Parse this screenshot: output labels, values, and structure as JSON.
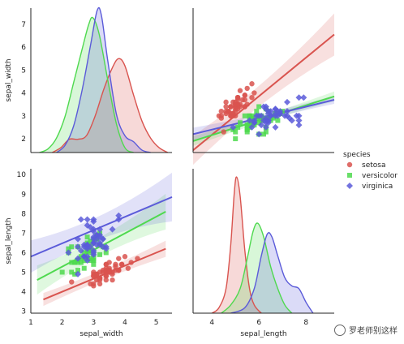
{
  "chart_data": {
    "type": "pairplot",
    "variables": [
      "sepal_width",
      "sepal_length"
    ],
    "species": [
      {
        "name": "setosa",
        "color": "#d9544f",
        "marker": "o"
      },
      {
        "name": "versicolor",
        "color": "#4fd94f",
        "marker": "s"
      },
      {
        "name": "virginica",
        "color": "#5b5bd9",
        "marker": "D"
      }
    ],
    "legend": {
      "title": "species",
      "placement": "right-center"
    },
    "axes": {
      "sepal_width": {
        "range": [
          1.4,
          7.7
        ],
        "ticks": [
          2,
          3,
          4,
          5,
          6,
          7
        ],
        "scatter_range": [
          1,
          5.5
        ],
        "scatter_ticks": [
          1,
          2,
          3,
          4,
          5
        ]
      },
      "sepal_length": {
        "range": [
          2.9,
          10.3
        ],
        "ticks": [
          3,
          4,
          5,
          6,
          7,
          8,
          9,
          10
        ],
        "kde_range": [
          3.2,
          9.2
        ],
        "kde_ticks": [
          4,
          6,
          8
        ]
      }
    },
    "points": {
      "setosa": [
        [
          5.1,
          3.5
        ],
        [
          4.9,
          3.0
        ],
        [
          4.7,
          3.2
        ],
        [
          4.6,
          3.1
        ],
        [
          5.0,
          3.6
        ],
        [
          5.4,
          3.9
        ],
        [
          4.6,
          3.4
        ],
        [
          5.0,
          3.4
        ],
        [
          4.4,
          2.9
        ],
        [
          4.9,
          3.1
        ],
        [
          5.4,
          3.7
        ],
        [
          4.8,
          3.4
        ],
        [
          4.8,
          3.0
        ],
        [
          4.3,
          3.0
        ],
        [
          5.8,
          4.0
        ],
        [
          5.7,
          4.4
        ],
        [
          5.4,
          3.9
        ],
        [
          5.1,
          3.5
        ],
        [
          5.7,
          3.8
        ],
        [
          5.1,
          3.8
        ],
        [
          5.4,
          3.4
        ],
        [
          5.1,
          3.7
        ],
        [
          4.6,
          3.6
        ],
        [
          5.1,
          3.3
        ],
        [
          4.8,
          3.4
        ],
        [
          5.0,
          3.0
        ],
        [
          5.0,
          3.4
        ],
        [
          5.2,
          3.5
        ],
        [
          5.2,
          3.4
        ],
        [
          4.7,
          3.2
        ],
        [
          4.8,
          3.1
        ],
        [
          5.4,
          3.4
        ],
        [
          5.2,
          4.1
        ],
        [
          5.5,
          4.2
        ],
        [
          4.9,
          3.1
        ],
        [
          5.0,
          3.2
        ],
        [
          5.5,
          3.5
        ],
        [
          4.9,
          3.6
        ],
        [
          4.4,
          3.0
        ],
        [
          5.1,
          3.4
        ],
        [
          5.0,
          3.5
        ],
        [
          4.5,
          2.3
        ],
        [
          4.4,
          3.2
        ],
        [
          5.0,
          3.5
        ],
        [
          5.1,
          3.8
        ],
        [
          4.8,
          3.0
        ],
        [
          5.1,
          3.8
        ],
        [
          4.6,
          3.2
        ],
        [
          5.3,
          3.7
        ],
        [
          5.0,
          3.3
        ]
      ],
      "versicolor": [
        [
          7.0,
          3.2
        ],
        [
          6.4,
          3.2
        ],
        [
          6.9,
          3.1
        ],
        [
          5.5,
          2.3
        ],
        [
          6.5,
          2.8
        ],
        [
          5.7,
          2.8
        ],
        [
          6.3,
          3.3
        ],
        [
          4.9,
          2.4
        ],
        [
          6.6,
          2.9
        ],
        [
          5.2,
          2.7
        ],
        [
          5.0,
          2.0
        ],
        [
          5.9,
          3.0
        ],
        [
          6.0,
          2.2
        ],
        [
          6.1,
          2.9
        ],
        [
          5.6,
          2.9
        ],
        [
          6.7,
          3.1
        ],
        [
          5.6,
          3.0
        ],
        [
          5.8,
          2.7
        ],
        [
          6.2,
          2.2
        ],
        [
          5.6,
          2.5
        ],
        [
          5.9,
          3.2
        ],
        [
          6.1,
          2.8
        ],
        [
          6.3,
          2.5
        ],
        [
          6.1,
          2.8
        ],
        [
          6.4,
          2.9
        ],
        [
          6.6,
          3.0
        ],
        [
          6.8,
          2.8
        ],
        [
          6.7,
          3.0
        ],
        [
          6.0,
          2.9
        ],
        [
          5.7,
          2.6
        ],
        [
          5.5,
          2.4
        ],
        [
          5.5,
          2.4
        ],
        [
          5.8,
          2.7
        ],
        [
          6.0,
          2.7
        ],
        [
          5.4,
          3.0
        ],
        [
          6.0,
          3.4
        ],
        [
          6.7,
          3.1
        ],
        [
          6.3,
          2.3
        ],
        [
          5.6,
          3.0
        ],
        [
          5.5,
          2.5
        ],
        [
          5.5,
          2.6
        ],
        [
          6.1,
          3.0
        ],
        [
          5.8,
          2.6
        ],
        [
          5.0,
          2.3
        ],
        [
          5.6,
          2.7
        ],
        [
          5.7,
          3.0
        ],
        [
          5.7,
          2.9
        ],
        [
          6.2,
          2.9
        ],
        [
          5.1,
          2.5
        ],
        [
          5.7,
          2.8
        ]
      ],
      "virginica": [
        [
          6.3,
          3.3
        ],
        [
          5.8,
          2.7
        ],
        [
          7.1,
          3.0
        ],
        [
          6.3,
          2.9
        ],
        [
          6.5,
          3.0
        ],
        [
          7.6,
          3.0
        ],
        [
          4.9,
          2.5
        ],
        [
          7.3,
          2.9
        ],
        [
          6.7,
          2.5
        ],
        [
          7.2,
          3.6
        ],
        [
          6.5,
          3.2
        ],
        [
          6.4,
          2.7
        ],
        [
          6.8,
          3.0
        ],
        [
          5.7,
          2.5
        ],
        [
          5.8,
          2.8
        ],
        [
          6.4,
          3.2
        ],
        [
          6.5,
          3.0
        ],
        [
          7.7,
          3.8
        ],
        [
          7.7,
          2.6
        ],
        [
          6.0,
          2.2
        ],
        [
          6.9,
          3.2
        ],
        [
          5.6,
          2.8
        ],
        [
          7.7,
          2.8
        ],
        [
          6.3,
          2.7
        ],
        [
          6.7,
          3.3
        ],
        [
          7.2,
          3.2
        ],
        [
          6.2,
          2.8
        ],
        [
          6.1,
          3.0
        ],
        [
          6.4,
          2.8
        ],
        [
          7.2,
          3.0
        ],
        [
          7.4,
          2.8
        ],
        [
          7.9,
          3.8
        ],
        [
          6.4,
          2.8
        ],
        [
          6.3,
          2.8
        ],
        [
          6.1,
          2.6
        ],
        [
          7.7,
          3.0
        ],
        [
          6.3,
          3.4
        ],
        [
          6.4,
          3.1
        ],
        [
          6.0,
          3.0
        ],
        [
          6.9,
          3.1
        ],
        [
          6.7,
          3.1
        ],
        [
          6.9,
          3.1
        ],
        [
          5.8,
          2.7
        ],
        [
          6.8,
          3.2
        ],
        [
          6.7,
          3.3
        ],
        [
          6.7,
          3.0
        ],
        [
          6.3,
          2.5
        ],
        [
          6.5,
          3.0
        ],
        [
          6.2,
          3.4
        ],
        [
          5.9,
          3.0
        ]
      ]
    },
    "regression": {
      "top_right": {
        "setosa": [
          [
            3.2,
            1.5
          ],
          [
            9.2,
            6.55
          ]
        ],
        "versicolor": [
          [
            3.2,
            1.9
          ],
          [
            9.2,
            3.85
          ]
        ],
        "virginica": [
          [
            3.2,
            2.2
          ],
          [
            9.2,
            3.7
          ]
        ]
      },
      "bottom_left": {
        "setosa": [
          [
            1.4,
            3.6
          ],
          [
            5.3,
            6.2
          ]
        ],
        "versicolor": [
          [
            1.2,
            4.6
          ],
          [
            5.3,
            8.1
          ]
        ],
        "virginica": [
          [
            1.0,
            5.8
          ],
          [
            5.5,
            8.85
          ]
        ]
      }
    },
    "kde_sepal_width": {
      "setosa": [
        [
          1.9,
          0
        ],
        [
          2.1,
          0.2
        ],
        [
          2.3,
          0.55
        ],
        [
          2.5,
          0.55
        ],
        [
          2.7,
          0.7
        ],
        [
          2.9,
          1.5
        ],
        [
          3.1,
          2.6
        ],
        [
          3.3,
          3.5
        ],
        [
          3.45,
          3.9
        ],
        [
          3.6,
          3.6
        ],
        [
          3.8,
          2.4
        ],
        [
          4.0,
          1.3
        ],
        [
          4.2,
          0.6
        ],
        [
          4.4,
          0.2
        ],
        [
          4.6,
          0
        ]
      ],
      "versicolor": [
        [
          1.6,
          0
        ],
        [
          1.8,
          0.15
        ],
        [
          2.0,
          0.6
        ],
        [
          2.2,
          1.5
        ],
        [
          2.4,
          2.9
        ],
        [
          2.6,
          4.3
        ],
        [
          2.75,
          5.3
        ],
        [
          2.85,
          5.6
        ],
        [
          3.0,
          4.9
        ],
        [
          3.2,
          3.0
        ],
        [
          3.4,
          1.2
        ],
        [
          3.6,
          0.2
        ],
        [
          3.8,
          0
        ]
      ],
      "virginica": [
        [
          2.0,
          0
        ],
        [
          2.2,
          0.3
        ],
        [
          2.4,
          1.1
        ],
        [
          2.6,
          2.6
        ],
        [
          2.8,
          4.5
        ],
        [
          2.95,
          5.9
        ],
        [
          3.05,
          5.7
        ],
        [
          3.2,
          3.8
        ],
        [
          3.4,
          1.6
        ],
        [
          3.6,
          0.7
        ],
        [
          3.8,
          0.45
        ],
        [
          4.0,
          0.1
        ],
        [
          4.2,
          0
        ]
      ]
    },
    "kde_sepal_length": {
      "setosa": [
        [
          4.0,
          0
        ],
        [
          4.3,
          0.2
        ],
        [
          4.6,
          0.9
        ],
        [
          4.8,
          2.5
        ],
        [
          4.95,
          4.4
        ],
        [
          5.05,
          5.0
        ],
        [
          5.2,
          4.3
        ],
        [
          5.4,
          2.3
        ],
        [
          5.6,
          0.9
        ],
        [
          5.8,
          0.3
        ],
        [
          6.1,
          0
        ]
      ],
      "versicolor": [
        [
          4.4,
          0
        ],
        [
          4.8,
          0.3
        ],
        [
          5.2,
          0.9
        ],
        [
          5.5,
          2.0
        ],
        [
          5.75,
          3.0
        ],
        [
          5.95,
          3.3
        ],
        [
          6.2,
          2.8
        ],
        [
          6.5,
          1.7
        ],
        [
          6.8,
          0.9
        ],
        [
          7.1,
          0.3
        ],
        [
          7.4,
          0
        ]
      ],
      "virginica": [
        [
          4.8,
          0
        ],
        [
          5.4,
          0.2
        ],
        [
          5.8,
          0.9
        ],
        [
          6.1,
          2.1
        ],
        [
          6.35,
          2.9
        ],
        [
          6.55,
          2.8
        ],
        [
          6.8,
          2.1
        ],
        [
          7.1,
          1.3
        ],
        [
          7.4,
          1.0
        ],
        [
          7.7,
          0.9
        ],
        [
          8.0,
          0.4
        ],
        [
          8.3,
          0
        ]
      ]
    },
    "xlabels": [
      "sepal_width",
      "sepal_length"
    ],
    "ylabels": [
      "sepal_width",
      "sepal_length"
    ]
  },
  "watermark": "罗老师别这样"
}
